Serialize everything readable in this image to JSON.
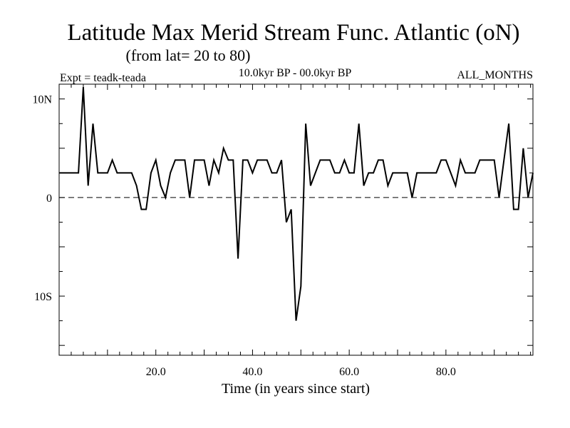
{
  "chart_data": {
    "type": "line",
    "title": "Latitude Max Merid Stream Func. Atlantic (oN)",
    "subtitle": "(from lat= 20 to 80)",
    "experiment_label": "Expt = teadk-teada",
    "period_label": "10.0kyr BP - 00.0kyr BP",
    "months_label": "ALL_MONTHS",
    "xlabel": "Time (in years since start)",
    "ylabel": "",
    "xlim": [
      0,
      98
    ],
    "ylim": [
      -16,
      11.5
    ],
    "x_ticks": [
      {
        "value": 20,
        "label": "20.0"
      },
      {
        "value": 40,
        "label": "40.0"
      },
      {
        "value": 60,
        "label": "60.0"
      },
      {
        "value": 80,
        "label": "80.0"
      }
    ],
    "y_ticks": [
      {
        "value": 10,
        "label": "10N"
      },
      {
        "value": 0,
        "label": "0"
      },
      {
        "value": -10,
        "label": "10S"
      }
    ],
    "reference_line": {
      "y": 0,
      "style": "dashed"
    },
    "series": [
      {
        "name": "teadk-teada",
        "x": [
          0,
          1,
          2,
          3,
          4,
          5,
          6,
          7,
          8,
          9,
          10,
          11,
          12,
          13,
          14,
          15,
          16,
          17,
          18,
          19,
          20,
          21,
          22,
          23,
          24,
          25,
          26,
          27,
          28,
          29,
          30,
          31,
          32,
          33,
          34,
          35,
          36,
          37,
          38,
          39,
          40,
          41,
          42,
          43,
          44,
          45,
          46,
          47,
          48,
          49,
          50,
          51,
          52,
          53,
          54,
          55,
          56,
          57,
          58,
          59,
          60,
          61,
          62,
          63,
          64,
          65,
          66,
          67,
          68,
          69,
          70,
          71,
          72,
          73,
          74,
          75,
          76,
          77,
          78,
          79,
          80,
          81,
          82,
          83,
          84,
          85,
          86,
          87,
          88,
          89,
          90,
          91,
          92,
          93,
          94,
          95,
          96,
          97,
          98
        ],
        "values": [
          2.5,
          2.5,
          2.5,
          2.5,
          2.5,
          11.2,
          1.2,
          7.5,
          2.5,
          2.5,
          2.5,
          3.8,
          2.5,
          2.5,
          2.5,
          2.5,
          1.2,
          -1.2,
          -1.2,
          2.5,
          3.8,
          1.2,
          0,
          2.5,
          3.8,
          3.8,
          3.8,
          0,
          3.8,
          3.8,
          3.8,
          1.2,
          3.8,
          2.5,
          5,
          3.8,
          3.8,
          -6.2,
          3.8,
          3.8,
          2.5,
          3.8,
          3.8,
          3.8,
          2.5,
          2.5,
          3.8,
          -2.5,
          -1.2,
          -12.5,
          -9,
          7.5,
          1.2,
          2.5,
          3.8,
          3.8,
          3.8,
          2.5,
          2.5,
          3.8,
          2.5,
          2.5,
          7.5,
          1.2,
          2.5,
          2.5,
          3.8,
          3.8,
          1.2,
          2.5,
          2.5,
          2.5,
          2.5,
          0,
          2.5,
          2.5,
          2.5,
          2.5,
          2.5,
          3.8,
          3.8,
          2.5,
          1.2,
          3.8,
          2.5,
          2.5,
          2.5,
          3.8,
          3.8,
          3.8,
          3.8,
          0,
          3.8,
          7.5,
          -1.2,
          -1.2,
          5,
          0,
          2.5
        ]
      }
    ]
  }
}
